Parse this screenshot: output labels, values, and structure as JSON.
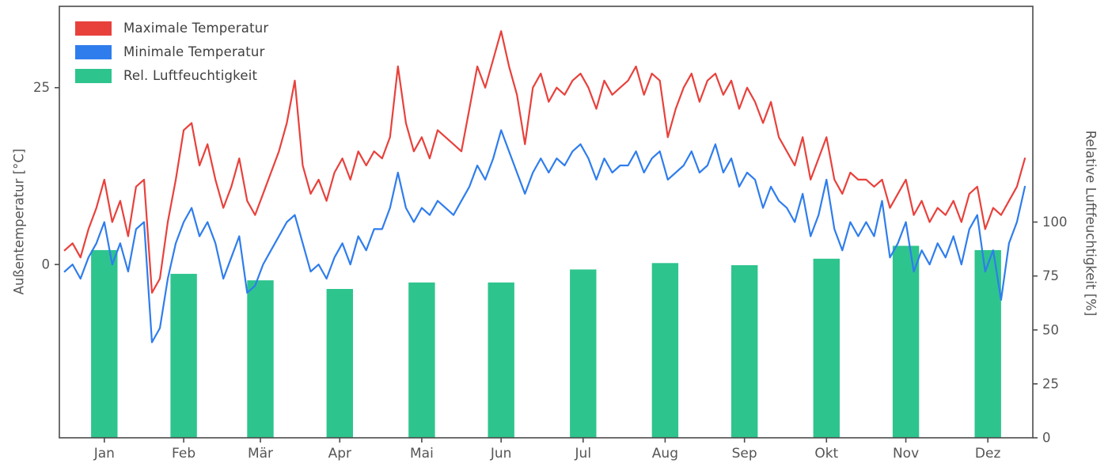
{
  "chart_data": {
    "type": "line+bar",
    "title": "",
    "legend": [
      {
        "label": "Maximale Temperatur",
        "color": "#e8413c",
        "type": "line"
      },
      {
        "label": "Minimale Temperatur",
        "color": "#2f7ded",
        "type": "line"
      },
      {
        "label": "Rel. Luftfeuchtigkeit",
        "color": "#2ec48e",
        "type": "bar"
      }
    ],
    "axes": {
      "left": {
        "label": "Außentemperatur [°C]",
        "range": [
          -24.5,
          36.5
        ],
        "ticks": [
          0,
          25
        ]
      },
      "right": {
        "label": "Relative Luftfeuchtigkeit [%]",
        "range": [
          0,
          200
        ],
        "ticks": [
          0,
          25,
          50,
          75,
          100
        ]
      },
      "bottom": {
        "months": [
          "Jan",
          "Feb",
          "Mär",
          "Apr",
          "Mai",
          "Jun",
          "Jul",
          "Aug",
          "Sep",
          "Okt",
          "Nov",
          "Dez"
        ],
        "month_center_days": [
          15,
          45,
          74,
          104,
          135,
          165,
          196,
          227,
          257,
          288,
          318,
          349
        ],
        "day_range": [
          -2,
          366
        ]
      }
    },
    "series": [
      {
        "name": "Maximale Temperatur",
        "type": "line",
        "color": "#e8413c",
        "x_step_days": 3,
        "unit": "°C",
        "values": [
          2,
          3,
          1,
          5,
          8,
          12,
          6,
          9,
          4,
          11,
          12,
          -4,
          -2,
          6,
          12,
          19,
          20,
          14,
          17,
          12,
          8,
          11,
          15,
          9,
          7,
          10,
          13,
          16,
          20,
          26,
          14,
          10,
          12,
          9,
          13,
          15,
          12,
          16,
          14,
          16,
          15,
          18,
          28,
          20,
          16,
          18,
          15,
          19,
          18,
          17,
          16,
          22,
          28,
          25,
          29,
          33,
          28,
          24,
          17,
          25,
          27,
          23,
          25,
          24,
          26,
          27,
          25,
          22,
          26,
          24,
          25,
          26,
          28,
          24,
          27,
          26,
          18,
          22,
          25,
          27,
          23,
          26,
          27,
          24,
          26,
          22,
          25,
          23,
          20,
          23,
          18,
          16,
          14,
          18,
          12,
          15,
          18,
          12,
          10,
          13,
          12,
          12,
          11,
          12,
          8,
          10,
          12,
          7,
          9,
          6,
          8,
          7,
          9,
          6,
          10,
          11,
          5,
          8,
          7,
          9,
          11,
          15
        ]
      },
      {
        "name": "Minimale Temperatur",
        "type": "line",
        "color": "#2f7ded",
        "x_step_days": 3,
        "unit": "°C",
        "values": [
          -1,
          0,
          -2,
          1,
          3,
          6,
          0,
          3,
          -1,
          5,
          6,
          -11,
          -9,
          -2,
          3,
          6,
          8,
          4,
          6,
          3,
          -2,
          1,
          4,
          -4,
          -3,
          0,
          2,
          4,
          6,
          7,
          3,
          -1,
          0,
          -2,
          1,
          3,
          0,
          4,
          2,
          5,
          5,
          8,
          13,
          8,
          6,
          8,
          7,
          9,
          8,
          7,
          9,
          11,
          14,
          12,
          15,
          19,
          16,
          13,
          10,
          13,
          15,
          13,
          15,
          14,
          16,
          17,
          15,
          12,
          15,
          13,
          14,
          14,
          16,
          13,
          15,
          16,
          12,
          13,
          14,
          16,
          13,
          14,
          17,
          13,
          15,
          11,
          13,
          12,
          8,
          11,
          9,
          8,
          6,
          10,
          4,
          7,
          12,
          5,
          2,
          6,
          4,
          6,
          4,
          9,
          1,
          3,
          6,
          -1,
          2,
          0,
          3,
          1,
          4,
          0,
          5,
          7,
          -1,
          2,
          -5,
          3,
          6,
          11
        ]
      },
      {
        "name": "Rel. Luftfeuchtigkeit",
        "type": "bar",
        "color": "#2ec48e",
        "unit": "%",
        "bar_width_days": 10,
        "values": [
          87,
          76,
          73,
          69,
          72,
          72,
          78,
          81,
          80,
          83,
          89,
          87
        ]
      }
    ],
    "styles": {
      "text_color": "#555555",
      "spine_color": "#4b4b4b",
      "background": "#ffffff",
      "line_width": 2.2,
      "tick_font_size": 16.5,
      "month_font_size": 17
    }
  }
}
